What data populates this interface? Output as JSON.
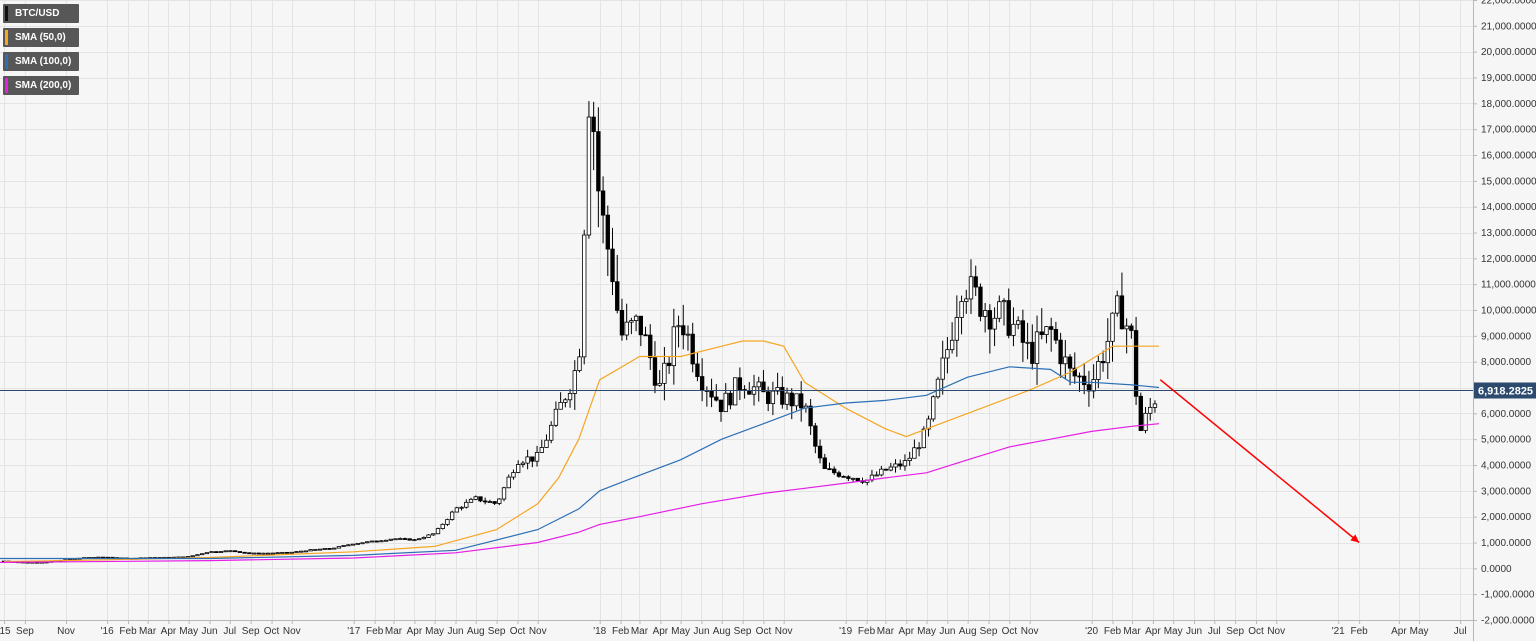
{
  "legend": [
    {
      "label": "BTC/USD",
      "color": "#111111"
    },
    {
      "label": "SMA (50,0)",
      "color": "#f5a623"
    },
    {
      "label": "SMA (100,0)",
      "color": "#2c6fb5"
    },
    {
      "label": "SMA (200,0)",
      "color": "#e61ee6"
    }
  ],
  "current_price_label": "6,918.2825",
  "colors": {
    "background": "#f6f6f6",
    "grid": "#e4e4e4",
    "axis": "#b8b8b8",
    "price_line": "#2b4a6e",
    "price_tag": "#2b4a6e",
    "candle_up_fill": "#ffffff",
    "candle_down_fill": "#000000",
    "candle_outline": "#000000",
    "arrow": "#ff0000"
  },
  "chart_data": {
    "type": "candlestick",
    "symbol": "BTC/USD",
    "interval": "weekly",
    "y_axis_side": "right",
    "ylim": [
      -2000,
      22000
    ],
    "y_ticks": [
      22000,
      21000,
      20000,
      19000,
      18000,
      17000,
      16000,
      15000,
      14000,
      13000,
      12000,
      11000,
      10000,
      9000,
      8000,
      7000,
      6000,
      5000,
      4000,
      3000,
      2000,
      1000,
      0,
      -1000,
      -2000
    ],
    "y_tick_labels": [
      "22,000.0000",
      "21,000.0000",
      "20,000.0000",
      "19,000.0000",
      "18,000.0000",
      "17,000.0000",
      "16,000.0000",
      "15,000.0000",
      "14,000.0000",
      "13,000.0000",
      "12,000.0000",
      "11,000.0000",
      "10,000.0000",
      "9,000.0000",
      "8,000.0000",
      "7,000.0000",
      "6,000.0000",
      "5,000.0000",
      "4,000.0000",
      "3,000.0000",
      "2,000.0000",
      "1,000.0000",
      "0.0000",
      "-1,000.0000",
      "-2,000.0000"
    ],
    "xlim": [
      "2015-07-26",
      "2021-07-20"
    ],
    "x_ticks": [
      {
        "date": "2015-08-01",
        "label": "'15"
      },
      {
        "date": "2015-09-01",
        "label": "Sep"
      },
      {
        "date": "2015-11-01",
        "label": "Nov"
      },
      {
        "date": "2016-01-01",
        "label": "'16"
      },
      {
        "date": "2016-02-01",
        "label": "Feb"
      },
      {
        "date": "2016-03-01",
        "label": "Mar"
      },
      {
        "date": "2016-04-01",
        "label": "Apr"
      },
      {
        "date": "2016-05-01",
        "label": "May"
      },
      {
        "date": "2016-06-01",
        "label": "Jun"
      },
      {
        "date": "2016-07-01",
        "label": "Jul"
      },
      {
        "date": "2016-08-01",
        "label": "Sep"
      },
      {
        "date": "2016-09-01",
        "label": "Oct"
      },
      {
        "date": "2016-10-01",
        "label": "Nov"
      },
      {
        "date": "2017-01-01",
        "label": "'17"
      },
      {
        "date": "2017-02-01",
        "label": "Feb"
      },
      {
        "date": "2017-03-01",
        "label": "Mar"
      },
      {
        "date": "2017-04-01",
        "label": "Apr"
      },
      {
        "date": "2017-05-01",
        "label": "May"
      },
      {
        "date": "2017-06-01",
        "label": "Jun"
      },
      {
        "date": "2017-07-01",
        "label": "Aug"
      },
      {
        "date": "2017-08-01",
        "label": "Sep"
      },
      {
        "date": "2017-09-01",
        "label": "Oct"
      },
      {
        "date": "2017-10-01",
        "label": "Nov"
      },
      {
        "date": "2018-01-01",
        "label": "'18"
      },
      {
        "date": "2018-02-01",
        "label": "Feb"
      },
      {
        "date": "2018-03-01",
        "label": "Mar"
      },
      {
        "date": "2018-04-01",
        "label": "Apr"
      },
      {
        "date": "2018-05-01",
        "label": "May"
      },
      {
        "date": "2018-06-01",
        "label": "Jun"
      },
      {
        "date": "2018-07-01",
        "label": "Aug"
      },
      {
        "date": "2018-08-01",
        "label": "Sep"
      },
      {
        "date": "2018-09-01",
        "label": "Oct"
      },
      {
        "date": "2018-10-01",
        "label": "Nov"
      },
      {
        "date": "2019-01-01",
        "label": "'19"
      },
      {
        "date": "2019-02-01",
        "label": "Feb"
      },
      {
        "date": "2019-03-01",
        "label": "Mar"
      },
      {
        "date": "2019-04-01",
        "label": "Apr"
      },
      {
        "date": "2019-05-01",
        "label": "May"
      },
      {
        "date": "2019-06-01",
        "label": "Jun"
      },
      {
        "date": "2019-07-01",
        "label": "Aug"
      },
      {
        "date": "2019-08-01",
        "label": "Sep"
      },
      {
        "date": "2019-09-01",
        "label": "Oct"
      },
      {
        "date": "2019-10-01",
        "label": "Nov"
      },
      {
        "date": "2020-01-01",
        "label": "'20"
      },
      {
        "date": "2020-02-01",
        "label": "Feb"
      },
      {
        "date": "2020-03-01",
        "label": "Mar"
      },
      {
        "date": "2020-04-01",
        "label": "Apr"
      },
      {
        "date": "2020-05-01",
        "label": "May"
      },
      {
        "date": "2020-06-01",
        "label": "Jun"
      },
      {
        "date": "2020-07-01",
        "label": "Jul"
      },
      {
        "date": "2020-08-01",
        "label": "Sep"
      },
      {
        "date": "2020-09-01",
        "label": "Oct"
      },
      {
        "date": "2020-10-01",
        "label": "Nov"
      },
      {
        "date": "2021-01-01",
        "label": "'21"
      },
      {
        "date": "2021-02-01",
        "label": "Feb"
      },
      {
        "date": "2021-04-01",
        "label": "Apr"
      },
      {
        "date": "2021-05-01",
        "label": "May"
      },
      {
        "date": "2021-07-01",
        "label": "Jul"
      }
    ],
    "candles_anchor_close": [
      [
        "2015-08-01",
        280
      ],
      [
        "2015-09-01",
        235
      ],
      [
        "2015-10-01",
        245
      ],
      [
        "2015-11-01",
        330
      ],
      [
        "2015-12-01",
        420
      ],
      [
        "2016-01-01",
        430
      ],
      [
        "2016-02-01",
        380
      ],
      [
        "2016-03-01",
        415
      ],
      [
        "2016-04-01",
        420
      ],
      [
        "2016-05-01",
        450
      ],
      [
        "2016-06-01",
        640
      ],
      [
        "2016-07-01",
        680
      ],
      [
        "2016-08-01",
        580
      ],
      [
        "2016-09-01",
        590
      ],
      [
        "2016-10-01",
        620
      ],
      [
        "2016-11-01",
        720
      ],
      [
        "2016-12-01",
        780
      ],
      [
        "2017-01-01",
        960
      ],
      [
        "2017-02-01",
        1050
      ],
      [
        "2017-03-01",
        1150
      ],
      [
        "2017-04-01",
        1100
      ],
      [
        "2017-05-01",
        1350
      ],
      [
        "2017-06-01",
        2300
      ],
      [
        "2017-07-01",
        2700
      ],
      [
        "2017-08-01",
        2500
      ],
      [
        "2017-09-01",
        4200
      ],
      [
        "2017-10-01",
        4300
      ],
      [
        "2017-11-01",
        6100
      ],
      [
        "2017-12-01",
        8000
      ],
      [
        "2017-12-17",
        19200
      ],
      [
        "2018-01-01",
        14000
      ],
      [
        "2018-01-20",
        11500
      ],
      [
        "2018-02-01",
        9000
      ],
      [
        "2018-03-01",
        9500
      ],
      [
        "2018-04-01",
        6900
      ],
      [
        "2018-05-01",
        9800
      ],
      [
        "2018-06-01",
        7400
      ],
      [
        "2018-07-01",
        6300
      ],
      [
        "2018-08-01",
        7300
      ],
      [
        "2018-09-01",
        6700
      ],
      [
        "2018-10-01",
        6600
      ],
      [
        "2018-11-01",
        6300
      ],
      [
        "2018-11-20",
        4400
      ],
      [
        "2018-12-01",
        3800
      ],
      [
        "2019-01-01",
        3600
      ],
      [
        "2019-02-01",
        3400
      ],
      [
        "2019-03-01",
        3800
      ],
      [
        "2019-04-01",
        4100
      ],
      [
        "2019-05-01",
        5300
      ],
      [
        "2019-06-01",
        8500
      ],
      [
        "2019-06-25",
        11500
      ],
      [
        "2019-07-01",
        10800
      ],
      [
        "2019-08-01",
        10000
      ],
      [
        "2019-09-01",
        9600
      ],
      [
        "2019-10-01",
        8300
      ],
      [
        "2019-11-01",
        9200
      ],
      [
        "2019-12-01",
        7500
      ],
      [
        "2020-01-01",
        7200
      ],
      [
        "2020-02-01",
        9300
      ],
      [
        "2020-02-12",
        10200
      ],
      [
        "2020-03-01",
        8800
      ],
      [
        "2020-03-12",
        5200
      ],
      [
        "2020-03-22",
        5900
      ],
      [
        "2020-04-01",
        6400
      ],
      [
        "2020-04-10",
        6918
      ]
    ],
    "series": [
      {
        "name": "SMA (50,0)",
        "color": "#f5a623",
        "points": [
          [
            "2015-08-01",
            260
          ],
          [
            "2016-01-01",
            330
          ],
          [
            "2016-06-01",
            420
          ],
          [
            "2017-01-01",
            640
          ],
          [
            "2017-05-01",
            850
          ],
          [
            "2017-08-01",
            1500
          ],
          [
            "2017-10-01",
            2500
          ],
          [
            "2017-11-01",
            3500
          ],
          [
            "2017-12-01",
            5000
          ],
          [
            "2018-01-01",
            7300
          ],
          [
            "2018-03-01",
            8200
          ],
          [
            "2018-05-01",
            8200
          ],
          [
            "2018-07-01",
            8600
          ],
          [
            "2018-08-01",
            8800
          ],
          [
            "2018-09-01",
            8800
          ],
          [
            "2018-10-01",
            8600
          ],
          [
            "2018-11-01",
            7200
          ],
          [
            "2019-01-01",
            6200
          ],
          [
            "2019-03-01",
            5400
          ],
          [
            "2019-04-01",
            5100
          ],
          [
            "2019-06-01",
            5700
          ],
          [
            "2019-08-01",
            6300
          ],
          [
            "2019-10-01",
            6900
          ],
          [
            "2019-12-01",
            7600
          ],
          [
            "2020-02-01",
            8600
          ],
          [
            "2020-04-10",
            8600
          ]
        ]
      },
      {
        "name": "SMA (100,0)",
        "color": "#2c6fb5",
        "points": [
          [
            "2015-07-26",
            380
          ],
          [
            "2016-06-01",
            380
          ],
          [
            "2017-01-01",
            500
          ],
          [
            "2017-06-01",
            700
          ],
          [
            "2017-10-01",
            1500
          ],
          [
            "2017-12-01",
            2300
          ],
          [
            "2018-01-01",
            3000
          ],
          [
            "2018-03-01",
            3600
          ],
          [
            "2018-05-01",
            4200
          ],
          [
            "2018-07-01",
            5000
          ],
          [
            "2018-09-01",
            5600
          ],
          [
            "2018-11-01",
            6200
          ],
          [
            "2019-01-01",
            6400
          ],
          [
            "2019-03-01",
            6500
          ],
          [
            "2019-05-01",
            6700
          ],
          [
            "2019-07-01",
            7400
          ],
          [
            "2019-09-01",
            7800
          ],
          [
            "2019-11-01",
            7700
          ],
          [
            "2019-12-01",
            7200
          ],
          [
            "2020-01-01",
            7200
          ],
          [
            "2020-03-01",
            7100
          ],
          [
            "2020-04-10",
            7000
          ]
        ]
      },
      {
        "name": "SMA (200,0)",
        "color": "#e61ee6",
        "points": [
          [
            "2015-07-26",
            230
          ],
          [
            "2016-06-01",
            300
          ],
          [
            "2017-01-01",
            400
          ],
          [
            "2017-06-01",
            600
          ],
          [
            "2017-10-01",
            1000
          ],
          [
            "2017-12-01",
            1400
          ],
          [
            "2018-01-01",
            1700
          ],
          [
            "2018-03-01",
            2000
          ],
          [
            "2018-06-01",
            2500
          ],
          [
            "2018-09-01",
            2900
          ],
          [
            "2018-11-01",
            3100
          ],
          [
            "2019-01-01",
            3300
          ],
          [
            "2019-03-01",
            3500
          ],
          [
            "2019-05-01",
            3700
          ],
          [
            "2019-07-01",
            4200
          ],
          [
            "2019-09-01",
            4700
          ],
          [
            "2019-11-01",
            5000
          ],
          [
            "2020-01-01",
            5300
          ],
          [
            "2020-03-01",
            5500
          ],
          [
            "2020-04-10",
            5600
          ]
        ]
      }
    ],
    "current_price": 6918.2825,
    "annotation_arrow": {
      "from": [
        "2020-04-12",
        7300
      ],
      "to": [
        "2021-02-01",
        1000
      ]
    },
    "grid": true,
    "legend_position": "top-left"
  }
}
